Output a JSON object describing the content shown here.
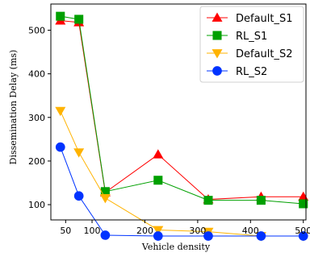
{
  "chart_data": {
    "type": "line",
    "title": "",
    "xlabel": "Vehicle density",
    "ylabel": "Dissemination Delay (ms)",
    "xlim": [
      22,
      505
    ],
    "ylim": [
      65,
      560
    ],
    "xticks": [
      50,
      100,
      200,
      300,
      400,
      500
    ],
    "yticks": [
      100,
      200,
      300,
      400,
      500
    ],
    "grid": false,
    "legend_position": "top-right",
    "series": [
      {
        "name": "Default_S1",
        "color": "#ff0000",
        "marker": "triangle-up",
        "x": [
          40,
          75,
          125,
          225,
          320,
          420,
          500
        ],
        "y": [
          522,
          518,
          128,
          215,
          112,
          118,
          118
        ]
      },
      {
        "name": "RL_S1",
        "color": "#00a000",
        "marker": "square",
        "x": [
          40,
          75,
          125,
          225,
          320,
          420,
          500
        ],
        "y": [
          532,
          525,
          130,
          156,
          110,
          110,
          102
        ]
      },
      {
        "name": "Default_S2",
        "color": "#ffb300",
        "marker": "triangle-down",
        "x": [
          40,
          75,
          125,
          225,
          320,
          420,
          500
        ],
        "y": [
          315,
          220,
          115,
          42,
          38,
          28,
          28
        ]
      },
      {
        "name": "RL_S2",
        "color": "#0033ff",
        "marker": "circle",
        "x": [
          40,
          75,
          125,
          225,
          320,
          420,
          500
        ],
        "y": [
          232,
          120,
          30,
          28,
          28,
          28,
          28
        ]
      }
    ]
  }
}
